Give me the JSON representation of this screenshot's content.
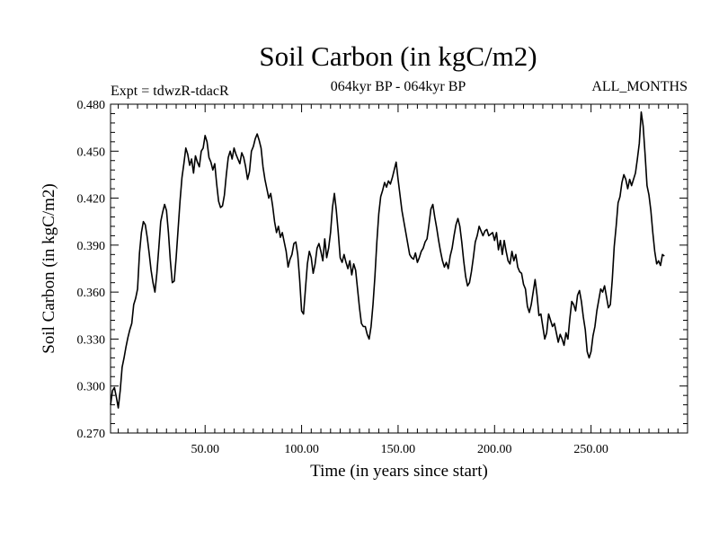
{
  "chart_data": {
    "type": "line",
    "title": "Soil Carbon (in kgC/m2)",
    "subtitle_left": "Expt = tdwzR-tdacR",
    "subtitle_center": "064kyr BP - 064kyr BP",
    "subtitle_right": "ALL_MONTHS",
    "xlabel": "Time (in years since start)",
    "ylabel": "Soil Carbon (in kgC/m2)",
    "xlim": [
      1,
      300
    ],
    "ylim": [
      0.27,
      0.48
    ],
    "x_ticks": [
      50,
      100,
      150,
      200,
      250
    ],
    "x_tick_labels": [
      "50.00",
      "100.00",
      "150.00",
      "200.00",
      "250.00"
    ],
    "y_ticks": [
      0.27,
      0.3,
      0.33,
      0.36,
      0.39,
      0.42,
      0.45,
      0.48
    ],
    "y_tick_labels": [
      "0.270",
      "0.300",
      "0.330",
      "0.360",
      "0.390",
      "0.420",
      "0.450",
      "0.480"
    ],
    "grid": false,
    "series": [
      {
        "color": "#000000",
        "points": [
          [
            1,
            0.288
          ],
          [
            2,
            0.297
          ],
          [
            3,
            0.299
          ],
          [
            4,
            0.293
          ],
          [
            5,
            0.286
          ],
          [
            6,
            0.297
          ],
          [
            7,
            0.312
          ],
          [
            8,
            0.318
          ],
          [
            9,
            0.325
          ],
          [
            10,
            0.331
          ],
          [
            11,
            0.336
          ],
          [
            12,
            0.34
          ],
          [
            13,
            0.352
          ],
          [
            14,
            0.356
          ],
          [
            15,
            0.362
          ],
          [
            16,
            0.385
          ],
          [
            17,
            0.398
          ],
          [
            18,
            0.405
          ],
          [
            19,
            0.403
          ],
          [
            20,
            0.395
          ],
          [
            21,
            0.385
          ],
          [
            22,
            0.374
          ],
          [
            23,
            0.366
          ],
          [
            24,
            0.36
          ],
          [
            25,
            0.372
          ],
          [
            26,
            0.388
          ],
          [
            27,
            0.405
          ],
          [
            28,
            0.411
          ],
          [
            29,
            0.416
          ],
          [
            30,
            0.412
          ],
          [
            31,
            0.398
          ],
          [
            32,
            0.38
          ],
          [
            33,
            0.366
          ],
          [
            34,
            0.367
          ],
          [
            35,
            0.382
          ],
          [
            36,
            0.4
          ],
          [
            37,
            0.418
          ],
          [
            38,
            0.433
          ],
          [
            39,
            0.442
          ],
          [
            40,
            0.452
          ],
          [
            41,
            0.448
          ],
          [
            42,
            0.441
          ],
          [
            43,
            0.445
          ],
          [
            44,
            0.436
          ],
          [
            45,
            0.447
          ],
          [
            46,
            0.443
          ],
          [
            47,
            0.44
          ],
          [
            48,
            0.45
          ],
          [
            49,
            0.452
          ],
          [
            50,
            0.46
          ],
          [
            51,
            0.456
          ],
          [
            52,
            0.446
          ],
          [
            53,
            0.443
          ],
          [
            54,
            0.438
          ],
          [
            55,
            0.442
          ],
          [
            56,
            0.429
          ],
          [
            57,
            0.418
          ],
          [
            58,
            0.414
          ],
          [
            59,
            0.415
          ],
          [
            60,
            0.422
          ],
          [
            61,
            0.435
          ],
          [
            62,
            0.446
          ],
          [
            63,
            0.45
          ],
          [
            64,
            0.445
          ],
          [
            65,
            0.452
          ],
          [
            66,
            0.448
          ],
          [
            67,
            0.445
          ],
          [
            68,
            0.442
          ],
          [
            69,
            0.449
          ],
          [
            70,
            0.446
          ],
          [
            71,
            0.44
          ],
          [
            72,
            0.432
          ],
          [
            73,
            0.437
          ],
          [
            74,
            0.45
          ],
          [
            75,
            0.453
          ],
          [
            76,
            0.458
          ],
          [
            77,
            0.461
          ],
          [
            78,
            0.457
          ],
          [
            79,
            0.452
          ],
          [
            80,
            0.44
          ],
          [
            81,
            0.432
          ],
          [
            82,
            0.426
          ],
          [
            83,
            0.42
          ],
          [
            84,
            0.423
          ],
          [
            85,
            0.415
          ],
          [
            86,
            0.405
          ],
          [
            87,
            0.398
          ],
          [
            88,
            0.402
          ],
          [
            89,
            0.395
          ],
          [
            90,
            0.398
          ],
          [
            91,
            0.392
          ],
          [
            92,
            0.386
          ],
          [
            93,
            0.376
          ],
          [
            94,
            0.381
          ],
          [
            95,
            0.384
          ],
          [
            96,
            0.391
          ],
          [
            97,
            0.392
          ],
          [
            98,
            0.384
          ],
          [
            99,
            0.368
          ],
          [
            100,
            0.348
          ],
          [
            101,
            0.346
          ],
          [
            102,
            0.362
          ],
          [
            103,
            0.378
          ],
          [
            104,
            0.386
          ],
          [
            105,
            0.382
          ],
          [
            106,
            0.372
          ],
          [
            107,
            0.378
          ],
          [
            108,
            0.388
          ],
          [
            109,
            0.391
          ],
          [
            110,
            0.386
          ],
          [
            111,
            0.38
          ],
          [
            112,
            0.394
          ],
          [
            113,
            0.382
          ],
          [
            114,
            0.388
          ],
          [
            115,
            0.398
          ],
          [
            116,
            0.414
          ],
          [
            117,
            0.423
          ],
          [
            118,
            0.412
          ],
          [
            119,
            0.398
          ],
          [
            120,
            0.382
          ],
          [
            121,
            0.379
          ],
          [
            122,
            0.384
          ],
          [
            123,
            0.379
          ],
          [
            124,
            0.375
          ],
          [
            125,
            0.38
          ],
          [
            126,
            0.371
          ],
          [
            127,
            0.378
          ],
          [
            128,
            0.374
          ],
          [
            129,
            0.362
          ],
          [
            130,
            0.35
          ],
          [
            131,
            0.34
          ],
          [
            132,
            0.338
          ],
          [
            133,
            0.338
          ],
          [
            134,
            0.333
          ],
          [
            135,
            0.33
          ],
          [
            136,
            0.338
          ],
          [
            137,
            0.352
          ],
          [
            138,
            0.37
          ],
          [
            139,
            0.392
          ],
          [
            140,
            0.41
          ],
          [
            141,
            0.421
          ],
          [
            142,
            0.425
          ],
          [
            143,
            0.43
          ],
          [
            144,
            0.427
          ],
          [
            145,
            0.431
          ],
          [
            146,
            0.429
          ],
          [
            147,
            0.433
          ],
          [
            148,
            0.438
          ],
          [
            149,
            0.443
          ],
          [
            150,
            0.432
          ],
          [
            151,
            0.422
          ],
          [
            152,
            0.412
          ],
          [
            153,
            0.405
          ],
          [
            154,
            0.398
          ],
          [
            155,
            0.391
          ],
          [
            156,
            0.384
          ],
          [
            157,
            0.382
          ],
          [
            158,
            0.381
          ],
          [
            159,
            0.385
          ],
          [
            160,
            0.379
          ],
          [
            161,
            0.382
          ],
          [
            162,
            0.386
          ],
          [
            163,
            0.388
          ],
          [
            164,
            0.392
          ],
          [
            165,
            0.394
          ],
          [
            166,
            0.403
          ],
          [
            167,
            0.413
          ],
          [
            168,
            0.416
          ],
          [
            169,
            0.408
          ],
          [
            170,
            0.401
          ],
          [
            171,
            0.393
          ],
          [
            172,
            0.386
          ],
          [
            173,
            0.38
          ],
          [
            174,
            0.376
          ],
          [
            175,
            0.379
          ],
          [
            176,
            0.375
          ],
          [
            177,
            0.383
          ],
          [
            178,
            0.388
          ],
          [
            179,
            0.396
          ],
          [
            180,
            0.403
          ],
          [
            181,
            0.407
          ],
          [
            182,
            0.402
          ],
          [
            183,
            0.392
          ],
          [
            184,
            0.38
          ],
          [
            185,
            0.37
          ],
          [
            186,
            0.364
          ],
          [
            187,
            0.366
          ],
          [
            188,
            0.373
          ],
          [
            189,
            0.382
          ],
          [
            190,
            0.392
          ],
          [
            191,
            0.396
          ],
          [
            192,
            0.402
          ],
          [
            193,
            0.399
          ],
          [
            194,
            0.396
          ],
          [
            195,
            0.399
          ],
          [
            196,
            0.4
          ],
          [
            197,
            0.396
          ],
          [
            198,
            0.397
          ],
          [
            199,
            0.398
          ],
          [
            200,
            0.393
          ],
          [
            201,
            0.398
          ],
          [
            202,
            0.387
          ],
          [
            203,
            0.393
          ],
          [
            204,
            0.384
          ],
          [
            205,
            0.393
          ],
          [
            206,
            0.386
          ],
          [
            207,
            0.38
          ],
          [
            208,
            0.378
          ],
          [
            209,
            0.386
          ],
          [
            210,
            0.38
          ],
          [
            211,
            0.384
          ],
          [
            212,
            0.376
          ],
          [
            213,
            0.373
          ],
          [
            214,
            0.372
          ],
          [
            215,
            0.365
          ],
          [
            216,
            0.362
          ],
          [
            217,
            0.351
          ],
          [
            218,
            0.347
          ],
          [
            219,
            0.352
          ],
          [
            220,
            0.36
          ],
          [
            221,
            0.368
          ],
          [
            222,
            0.358
          ],
          [
            223,
            0.345
          ],
          [
            224,
            0.346
          ],
          [
            225,
            0.338
          ],
          [
            226,
            0.33
          ],
          [
            227,
            0.334
          ],
          [
            228,
            0.346
          ],
          [
            229,
            0.342
          ],
          [
            230,
            0.338
          ],
          [
            231,
            0.34
          ],
          [
            232,
            0.334
          ],
          [
            233,
            0.328
          ],
          [
            234,
            0.333
          ],
          [
            235,
            0.33
          ],
          [
            236,
            0.326
          ],
          [
            237,
            0.334
          ],
          [
            238,
            0.33
          ],
          [
            239,
            0.343
          ],
          [
            240,
            0.354
          ],
          [
            241,
            0.352
          ],
          [
            242,
            0.348
          ],
          [
            243,
            0.358
          ],
          [
            244,
            0.361
          ],
          [
            245,
            0.354
          ],
          [
            246,
            0.344
          ],
          [
            247,
            0.336
          ],
          [
            248,
            0.322
          ],
          [
            249,
            0.318
          ],
          [
            250,
            0.322
          ],
          [
            251,
            0.332
          ],
          [
            252,
            0.338
          ],
          [
            253,
            0.348
          ],
          [
            254,
            0.355
          ],
          [
            255,
            0.362
          ],
          [
            256,
            0.36
          ],
          [
            257,
            0.364
          ],
          [
            258,
            0.357
          ],
          [
            259,
            0.35
          ],
          [
            260,
            0.352
          ],
          [
            261,
            0.368
          ],
          [
            262,
            0.389
          ],
          [
            263,
            0.402
          ],
          [
            264,
            0.417
          ],
          [
            265,
            0.421
          ],
          [
            266,
            0.43
          ],
          [
            267,
            0.435
          ],
          [
            268,
            0.432
          ],
          [
            269,
            0.426
          ],
          [
            270,
            0.432
          ],
          [
            271,
            0.428
          ],
          [
            272,
            0.432
          ],
          [
            273,
            0.436
          ],
          [
            274,
            0.445
          ],
          [
            275,
            0.455
          ],
          [
            276,
            0.475
          ],
          [
            277,
            0.466
          ],
          [
            278,
            0.448
          ],
          [
            279,
            0.428
          ],
          [
            280,
            0.422
          ],
          [
            281,
            0.412
          ],
          [
            282,
            0.398
          ],
          [
            283,
            0.386
          ],
          [
            284,
            0.378
          ],
          [
            285,
            0.38
          ],
          [
            286,
            0.377
          ],
          [
            287,
            0.384
          ],
          [
            288,
            0.383
          ]
        ]
      }
    ]
  }
}
